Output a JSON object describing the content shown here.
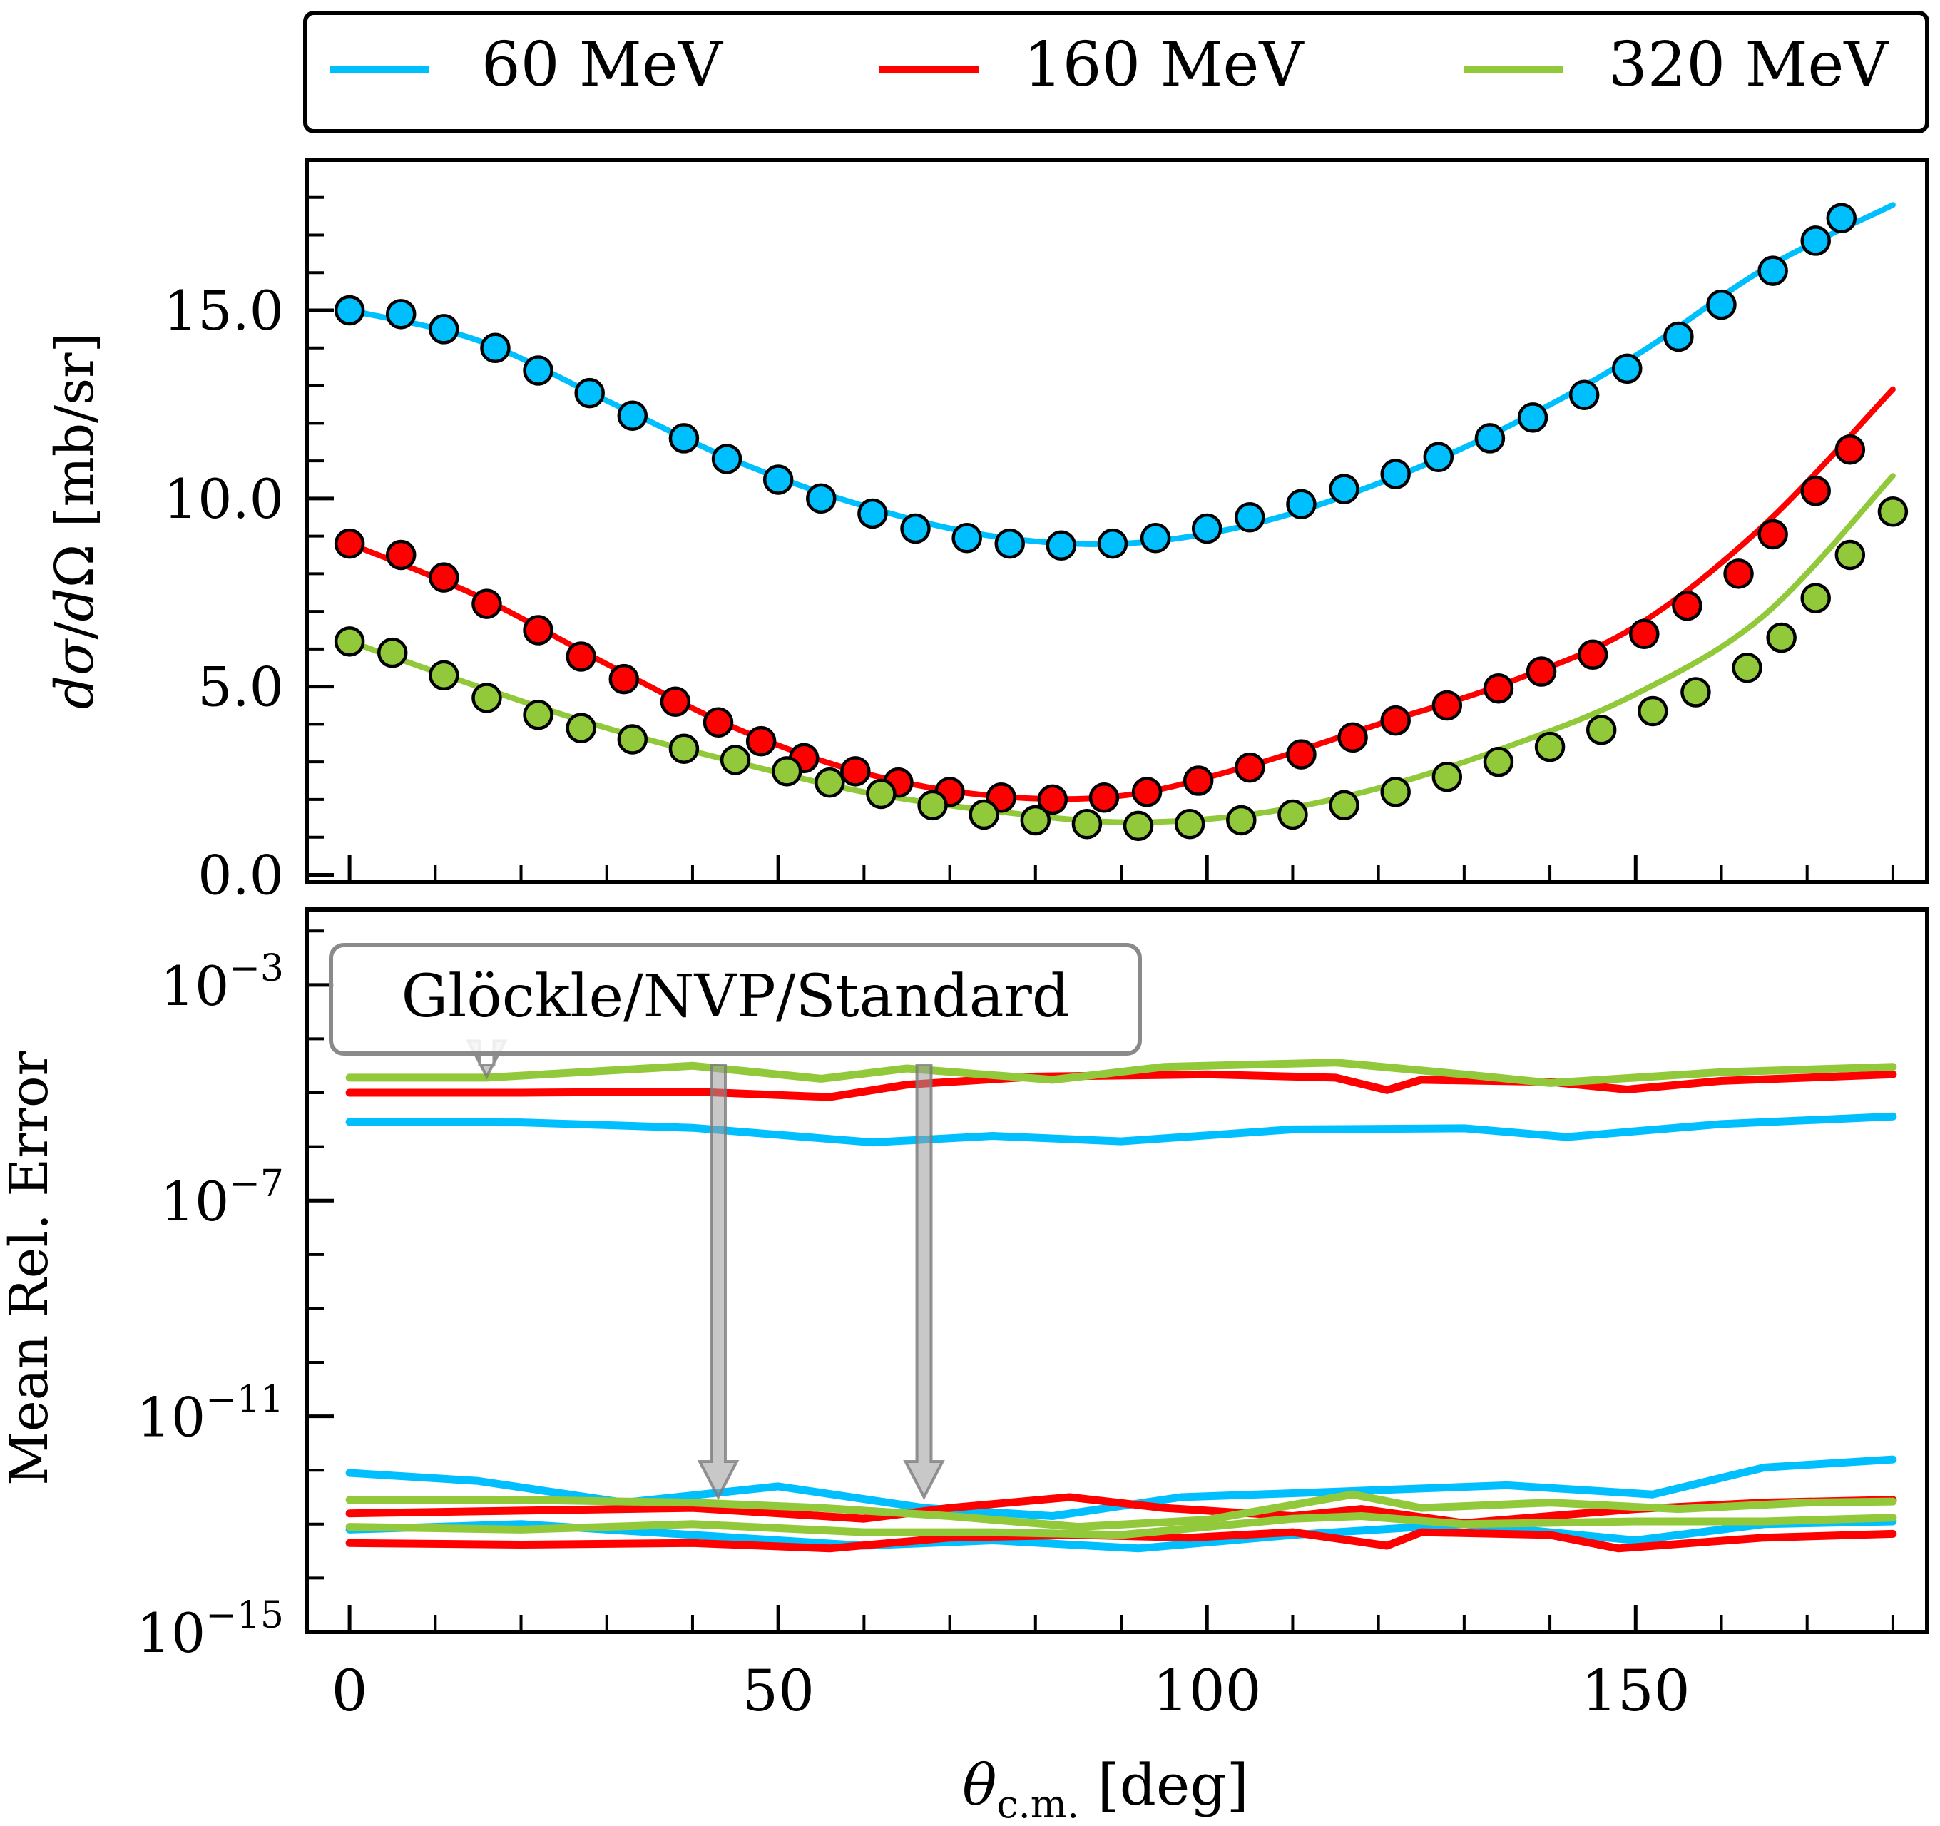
{
  "colors": {
    "60": "#00bfff",
    "160": "#ff0000",
    "320": "#91c93a",
    "annotation": "#9a9a9a"
  },
  "legend": {
    "items": [
      {
        "key": "60",
        "label": "60 MeV"
      },
      {
        "key": "160",
        "label": "160 MeV"
      },
      {
        "key": "320",
        "label": "320 MeV"
      }
    ]
  },
  "annotation": {
    "text": "Glöckle/NVP/Standard",
    "arrow_targets": [
      {
        "x": 16,
        "y_exp": -4.7
      },
      {
        "x": 43,
        "y_exp": -12.5
      },
      {
        "x": 67,
        "y_exp": -12.5
      }
    ]
  },
  "chart_data": [
    {
      "type": "line",
      "panel": "top",
      "title": "",
      "xlabel": "θc.m. [deg]",
      "ylabel": "dσ/dΩ [mb/sr]",
      "xlim": [
        -5,
        184
      ],
      "ylim": [
        -0.2,
        19.0
      ],
      "yticks": [
        0.0,
        5.0,
        10.0,
        15.0
      ],
      "ytick_labels": [
        "0.0",
        "5.0",
        "10.0",
        "15.0"
      ],
      "series": [
        {
          "name": "60 MeV",
          "key": "60",
          "curve_x": [
            0,
            15,
            30,
            45,
            60,
            75,
            90,
            105,
            120,
            135,
            150,
            165,
            180
          ],
          "curve_y": [
            15.0,
            14.2,
            12.6,
            11.0,
            9.8,
            9.0,
            8.8,
            9.3,
            10.4,
            11.9,
            13.8,
            16.1,
            17.8
          ],
          "marker_x": [
            0,
            6,
            11,
            17,
            22,
            28,
            33,
            39,
            44,
            50,
            55,
            61,
            66,
            72,
            77,
            83,
            89,
            94,
            100,
            105,
            111,
            116,
            122,
            127,
            133,
            138,
            144,
            149,
            155,
            160,
            166,
            171,
            174
          ],
          "marker_y": [
            15.0,
            14.9,
            14.5,
            14.0,
            13.4,
            12.8,
            12.2,
            11.6,
            11.05,
            10.5,
            10.0,
            9.6,
            9.2,
            8.95,
            8.8,
            8.75,
            8.8,
            8.95,
            9.2,
            9.5,
            9.85,
            10.25,
            10.65,
            11.1,
            11.6,
            12.15,
            12.75,
            13.45,
            14.3,
            15.15,
            16.05,
            16.85,
            17.45
          ]
        },
        {
          "name": "160 MeV",
          "key": "160",
          "curve_x": [
            0,
            15,
            30,
            45,
            60,
            75,
            90,
            105,
            120,
            135,
            150,
            165,
            180
          ],
          "curve_y": [
            8.8,
            7.4,
            5.6,
            3.9,
            2.7,
            2.1,
            2.1,
            2.9,
            4.0,
            5.1,
            6.6,
            9.3,
            12.9
          ],
          "marker_x": [
            0,
            6,
            11,
            16,
            22,
            27,
            32,
            38,
            43,
            48,
            53,
            59,
            64,
            70,
            76,
            82,
            88,
            93,
            99,
            105,
            111,
            117,
            122,
            128,
            134,
            139,
            145,
            151,
            156,
            162,
            166,
            171,
            175
          ],
          "marker_y": [
            8.8,
            8.5,
            7.9,
            7.2,
            6.5,
            5.8,
            5.2,
            4.6,
            4.05,
            3.55,
            3.1,
            2.75,
            2.45,
            2.2,
            2.05,
            2.0,
            2.05,
            2.2,
            2.5,
            2.85,
            3.2,
            3.65,
            4.1,
            4.5,
            4.95,
            5.4,
            5.85,
            6.4,
            7.15,
            8.0,
            9.05,
            10.2,
            11.3
          ]
        },
        {
          "name": "320 MeV",
          "key": "320",
          "curve_x": [
            0,
            15,
            30,
            45,
            60,
            75,
            90,
            105,
            120,
            135,
            150,
            165,
            180
          ],
          "curve_y": [
            6.2,
            5.0,
            3.9,
            3.0,
            2.2,
            1.7,
            1.4,
            1.6,
            2.3,
            3.4,
            4.8,
            6.9,
            10.6
          ],
          "marker_x": [
            0,
            5,
            11,
            16,
            22,
            27,
            33,
            39,
            45,
            51,
            56,
            62,
            68,
            74,
            80,
            86,
            92,
            98,
            104,
            110,
            116,
            122,
            128,
            134,
            140,
            146,
            152,
            157,
            163,
            167,
            171,
            175,
            180
          ],
          "marker_y": [
            6.2,
            5.9,
            5.3,
            4.7,
            4.25,
            3.9,
            3.6,
            3.35,
            3.05,
            2.75,
            2.45,
            2.15,
            1.85,
            1.6,
            1.45,
            1.35,
            1.3,
            1.35,
            1.45,
            1.6,
            1.85,
            2.2,
            2.6,
            3.0,
            3.4,
            3.85,
            4.35,
            4.85,
            5.5,
            6.3,
            7.35,
            8.5,
            9.65
          ]
        }
      ]
    },
    {
      "type": "line",
      "panel": "bottom",
      "title": "",
      "xlabel": "θc.m. [deg]",
      "ylabel": "Mean Rel. Error",
      "yscale": "log",
      "xlim": [
        -5,
        184
      ],
      "ylim_exp": [
        -15,
        -1.6
      ],
      "xticks": [
        0,
        50,
        100,
        150
      ],
      "xtick_labels": [
        "0",
        "50",
        "100",
        "150"
      ],
      "yticks_exp": [
        -15,
        -11,
        -7,
        -3
      ],
      "ytick_labels": [
        {
          "base": "10",
          "exp": "−15"
        },
        {
          "base": "10",
          "exp": "−11"
        },
        {
          "base": "10",
          "exp": "−7"
        },
        {
          "base": "10",
          "exp": "−3"
        }
      ],
      "series": [
        {
          "name": "60 MeV",
          "key": "60",
          "x": [
            0,
            20,
            40,
            61,
            75,
            90,
            110,
            130,
            142,
            160,
            180
          ],
          "y_exp": [
            -5.54,
            -5.55,
            -5.65,
            -5.92,
            -5.8,
            -5.9,
            -5.68,
            -5.66,
            -5.82,
            -5.58,
            -5.44
          ]
        },
        {
          "name": "160 MeV",
          "key": "160",
          "x": [
            0,
            20,
            40,
            56,
            65,
            80,
            100,
            115,
            121,
            125,
            140,
            149,
            160,
            180
          ],
          "y_exp": [
            -5.0,
            -5.0,
            -4.98,
            -5.08,
            -4.85,
            -4.7,
            -4.66,
            -4.72,
            -4.95,
            -4.76,
            -4.8,
            -4.94,
            -4.78,
            -4.66
          ]
        },
        {
          "name": "320 MeV",
          "key": "320",
          "x": [
            0,
            16,
            40,
            55,
            65,
            82,
            95,
            115,
            130,
            140,
            160,
            180
          ],
          "y_exp": [
            -4.72,
            -4.72,
            -4.5,
            -4.74,
            -4.55,
            -4.76,
            -4.52,
            -4.44,
            -4.66,
            -4.82,
            -4.62,
            -4.52
          ]
        },
        {
          "name": "60 MeV",
          "key": "60",
          "x": [
            0,
            15,
            32,
            50,
            67,
            82,
            97,
            115,
            135,
            152,
            165,
            180
          ],
          "y_exp": [
            -12.05,
            -12.2,
            -12.6,
            -12.3,
            -12.7,
            -12.85,
            -12.5,
            -12.4,
            -12.28,
            -12.45,
            -11.95,
            -11.8
          ]
        },
        {
          "name": "60 MeV",
          "key": "60",
          "x": [
            0,
            20,
            45,
            60,
            75,
            92,
            110,
            130,
            150,
            165,
            180
          ],
          "y_exp": [
            -13.1,
            -13.0,
            -13.25,
            -13.4,
            -13.3,
            -13.45,
            -13.2,
            -13.0,
            -13.3,
            -13.0,
            -12.95
          ]
        },
        {
          "name": "160 MeV",
          "key": "160",
          "x": [
            0,
            20,
            40,
            56,
            70,
            85,
            98,
            110,
            121,
            125,
            140,
            148,
            165,
            180
          ],
          "y_exp": [
            -13.35,
            -13.38,
            -13.35,
            -13.45,
            -13.25,
            -13.2,
            -13.25,
            -13.15,
            -13.4,
            -13.15,
            -13.2,
            -13.45,
            -13.25,
            -13.18
          ]
        },
        {
          "name": "160 MeV",
          "key": "160",
          "x": [
            0,
            20,
            40,
            60,
            70,
            84,
            95,
            110,
            118,
            130,
            150,
            165,
            180
          ],
          "y_exp": [
            -12.8,
            -12.75,
            -12.7,
            -12.9,
            -12.7,
            -12.5,
            -12.7,
            -12.85,
            -12.72,
            -12.98,
            -12.72,
            -12.6,
            -12.55
          ]
        },
        {
          "name": "320 MeV",
          "key": "320",
          "x": [
            0,
            20,
            40,
            55,
            70,
            85,
            100,
            117,
            125,
            140,
            155,
            170,
            180
          ],
          "y_exp": [
            -12.55,
            -12.55,
            -12.6,
            -12.7,
            -12.85,
            -13.05,
            -12.92,
            -12.45,
            -12.7,
            -12.6,
            -12.72,
            -12.6,
            -12.58
          ]
        },
        {
          "name": "320 MeV",
          "key": "320",
          "x": [
            0,
            20,
            40,
            60,
            75,
            90,
            110,
            118,
            130,
            150,
            165,
            180
          ],
          "y_exp": [
            -13.05,
            -13.1,
            -13.0,
            -13.15,
            -13.15,
            -13.2,
            -12.9,
            -12.85,
            -13.0,
            -12.95,
            -12.95,
            -12.88
          ]
        }
      ]
    }
  ]
}
